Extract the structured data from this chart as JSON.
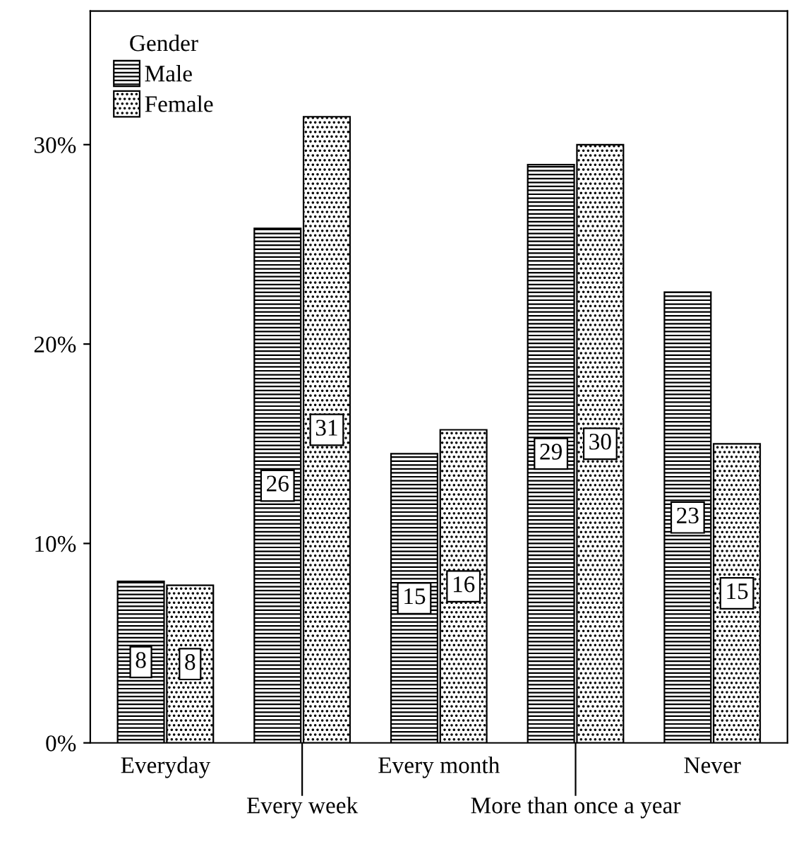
{
  "chart_data": {
    "type": "bar",
    "legend_title": "Gender",
    "categories": [
      "Everyday",
      "Every week",
      "Every month",
      "More than once a year",
      "Never"
    ],
    "series": [
      {
        "name": "Male",
        "color": "#000000",
        "values": [
          8.1,
          25.8,
          14.5,
          29.0,
          22.6
        ],
        "value_labels": [
          "8",
          "26",
          "15",
          "29",
          "23"
        ]
      },
      {
        "name": "Female",
        "color": "#000000",
        "values": [
          7.9,
          31.4,
          15.7,
          30.0,
          15.0
        ],
        "value_labels": [
          "8",
          "31",
          "16",
          "30",
          "15"
        ]
      }
    ],
    "ylim": [
      0,
      36.7
    ],
    "yticks": [
      {
        "value": 0,
        "label": "0%"
      },
      {
        "value": 10,
        "label": "10%"
      },
      {
        "value": 20,
        "label": "20%"
      },
      {
        "value": 30,
        "label": "30%"
      }
    ],
    "grid": false,
    "legend": "top left"
  }
}
